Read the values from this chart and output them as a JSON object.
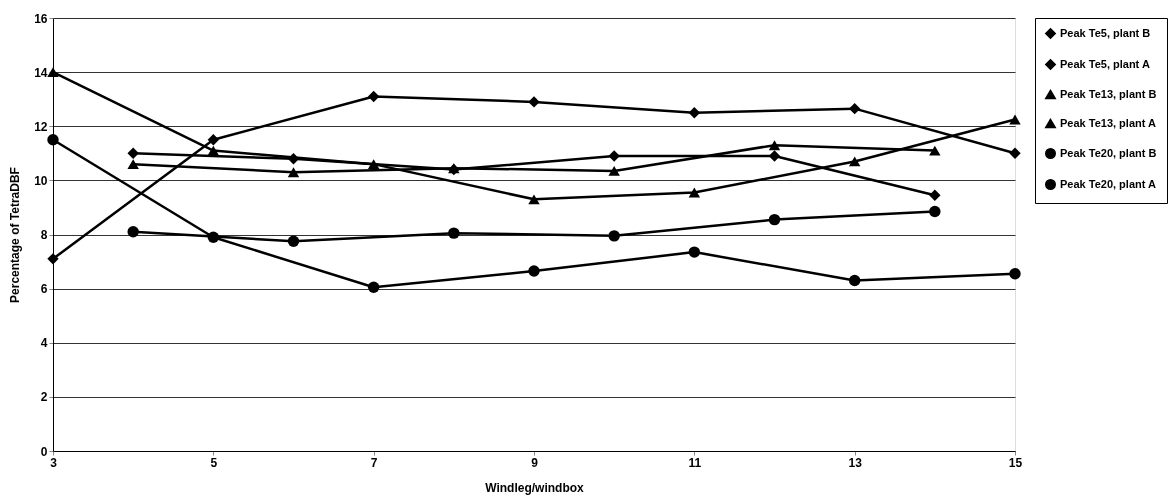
{
  "chart_data": {
    "type": "line",
    "xlabel": "Windleg/windbox",
    "ylabel": "Percentage of TetraDBF",
    "xlim": [
      3,
      15
    ],
    "xticks": [
      3,
      5,
      7,
      9,
      11,
      13,
      15
    ],
    "ylim": [
      0,
      16
    ],
    "yticks": [
      0,
      2,
      4,
      6,
      8,
      10,
      12,
      14,
      16
    ],
    "grid": "y",
    "legend": "right",
    "line_style": "solid",
    "series": [
      {
        "name": "Peak Te5, plant B",
        "color": "#000000",
        "marker": "diamond",
        "x": [
          4,
          6,
          8,
          10,
          12,
          14
        ],
        "values": [
          11.0,
          10.8,
          10.4,
          10.9,
          10.9,
          9.45
        ]
      },
      {
        "name": "Peak Te5, plant A",
        "color": "#000000",
        "marker": "diamond",
        "x": [
          3,
          5,
          7,
          9,
          11,
          13,
          15
        ],
        "values": [
          7.1,
          11.5,
          13.1,
          12.9,
          12.5,
          12.65,
          11.0
        ]
      },
      {
        "name": "Peak Te13, plant B",
        "color": "#000000",
        "marker": "triangle",
        "x": [
          4,
          6,
          8,
          10,
          12,
          14
        ],
        "values": [
          10.6,
          10.3,
          10.45,
          10.35,
          11.3,
          11.1
        ]
      },
      {
        "name": "Peak Te13, plant A",
        "color": "#000000",
        "marker": "triangle",
        "x": [
          3,
          5,
          7,
          9,
          11,
          13,
          15
        ],
        "values": [
          14.0,
          11.1,
          10.6,
          9.3,
          9.55,
          10.7,
          12.25
        ]
      },
      {
        "name": "Peak Te20, plant B",
        "color": "#000000",
        "marker": "circle",
        "x": [
          4,
          6,
          8,
          10,
          12,
          14
        ],
        "values": [
          8.1,
          7.75,
          8.05,
          7.95,
          8.55,
          8.85
        ]
      },
      {
        "name": "Peak Te20, plant A",
        "color": "#000000",
        "marker": "circle",
        "x": [
          3,
          5,
          7,
          9,
          11,
          13,
          15
        ],
        "values": [
          11.5,
          7.9,
          6.05,
          6.65,
          7.35,
          6.3,
          6.55
        ]
      }
    ]
  }
}
